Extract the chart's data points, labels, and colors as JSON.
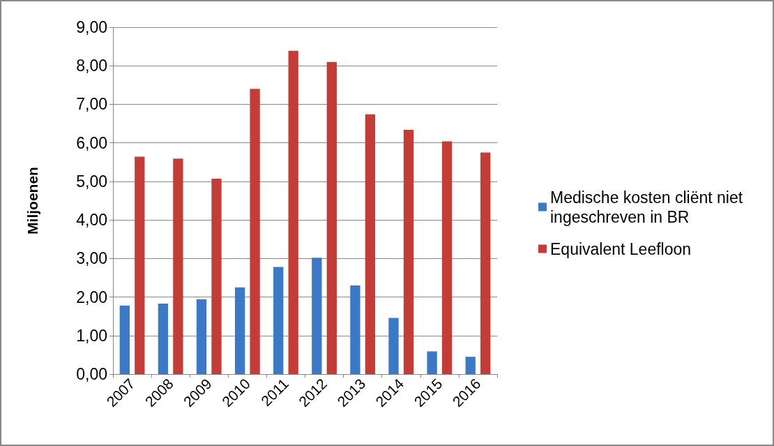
{
  "chart_data": {
    "type": "bar",
    "ylabel": "Miljoenen",
    "categories": [
      "2007",
      "2008",
      "2009",
      "2010",
      "2011",
      "2012",
      "2013",
      "2014",
      "2015",
      "2016"
    ],
    "series": [
      {
        "name": "Medische kosten cliënt niet ingeschreven in BR",
        "color": "#3b78c6",
        "values": [
          1.78,
          1.83,
          1.94,
          2.25,
          2.78,
          3.02,
          2.3,
          1.46,
          0.59,
          0.45
        ]
      },
      {
        "name": "Equivalent Leefloon",
        "color": "#c43c38",
        "values": [
          5.64,
          5.59,
          5.07,
          7.4,
          8.39,
          8.1,
          6.74,
          6.34,
          6.04,
          5.75
        ]
      }
    ],
    "ylim": [
      0,
      9
    ],
    "yticks": [
      {
        "value": 0,
        "label": "0,00"
      },
      {
        "value": 1,
        "label": "1,00"
      },
      {
        "value": 2,
        "label": "2,00"
      },
      {
        "value": 3,
        "label": "3,00"
      },
      {
        "value": 4,
        "label": "4,00"
      },
      {
        "value": 5,
        "label": "5,00"
      },
      {
        "value": 6,
        "label": "6,00"
      },
      {
        "value": 7,
        "label": "7,00"
      },
      {
        "value": 8,
        "label": "8,00"
      },
      {
        "value": 9,
        "label": "9,00"
      }
    ],
    "grid": "y",
    "legend": "right"
  }
}
